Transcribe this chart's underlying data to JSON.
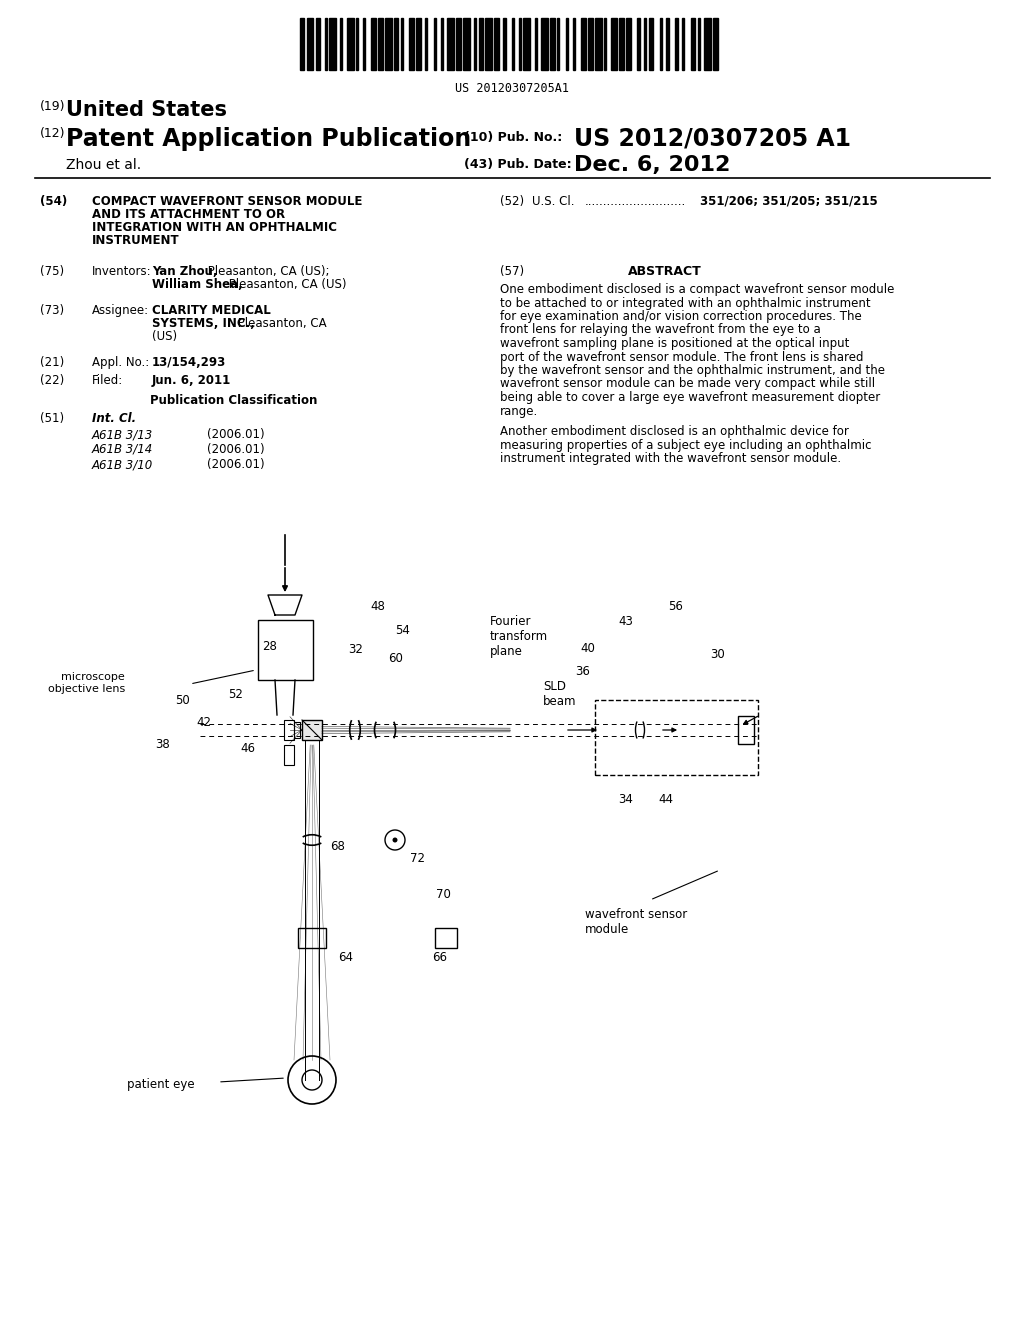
{
  "background_color": "#ffffff",
  "barcode_text": "US 20120307205A1",
  "header": {
    "country_num": "(19)",
    "country": "United States",
    "type_num": "(12)",
    "type": "Patent Application Publication",
    "pub_num_label": "(10) Pub. No.:",
    "pub_num": "US 2012/0307205 A1",
    "author": "Zhou et al.",
    "pub_date_label": "(43) Pub. Date:",
    "pub_date": "Dec. 6, 2012"
  },
  "left_col": {
    "title_lines": [
      "COMPACT WAVEFRONT SENSOR MODULE",
      "AND ITS ATTACHMENT TO OR",
      "INTEGRATION WITH AN OPHTHALMIC",
      "INSTRUMENT"
    ],
    "inventors_name1_bold": "Yan Zhou,",
    "inventors_name1_rest": " Pleasanton, CA (US);",
    "inventors_name2_bold": "William Shea,",
    "inventors_name2_rest": " Pleasanton, CA (US)",
    "assignee_bold": "CLARITY MEDICAL",
    "assignee_bold2": "SYSTEMS, INC.,",
    "assignee_rest": " Pleasanton, CA",
    "assignee_rest2": "(US)",
    "appl_num": "13/154,293",
    "filed": "Jun. 6, 2011",
    "classes": [
      [
        "A61B 3/13",
        "(2006.01)"
      ],
      [
        "A61B 3/14",
        "(2006.01)"
      ],
      [
        "A61B 3/10",
        "(2006.01)"
      ]
    ],
    "us_cl_value": "351/206; 351/205; 351/215"
  },
  "abstract": {
    "para1": "One embodiment disclosed is a compact wavefront sensor module to be attached to or integrated with an ophthalmic instrument for eye examination and/or vision correction procedures. The front lens for relaying the wavefront from the eye to a wavefront sampling plane is positioned at the optical input port of the wavefront sensor module. The front lens is shared by the wavefront sensor and the ophthalmic instrument, and the wavefront sensor module can be made very compact while still being able to cover a large eye wavefront measurement diopter range.",
    "para2": "Another embodiment disclosed is an ophthalmic device for measuring properties of a subject eye including an ophthalmic instrument integrated with the wavefront sensor module."
  }
}
